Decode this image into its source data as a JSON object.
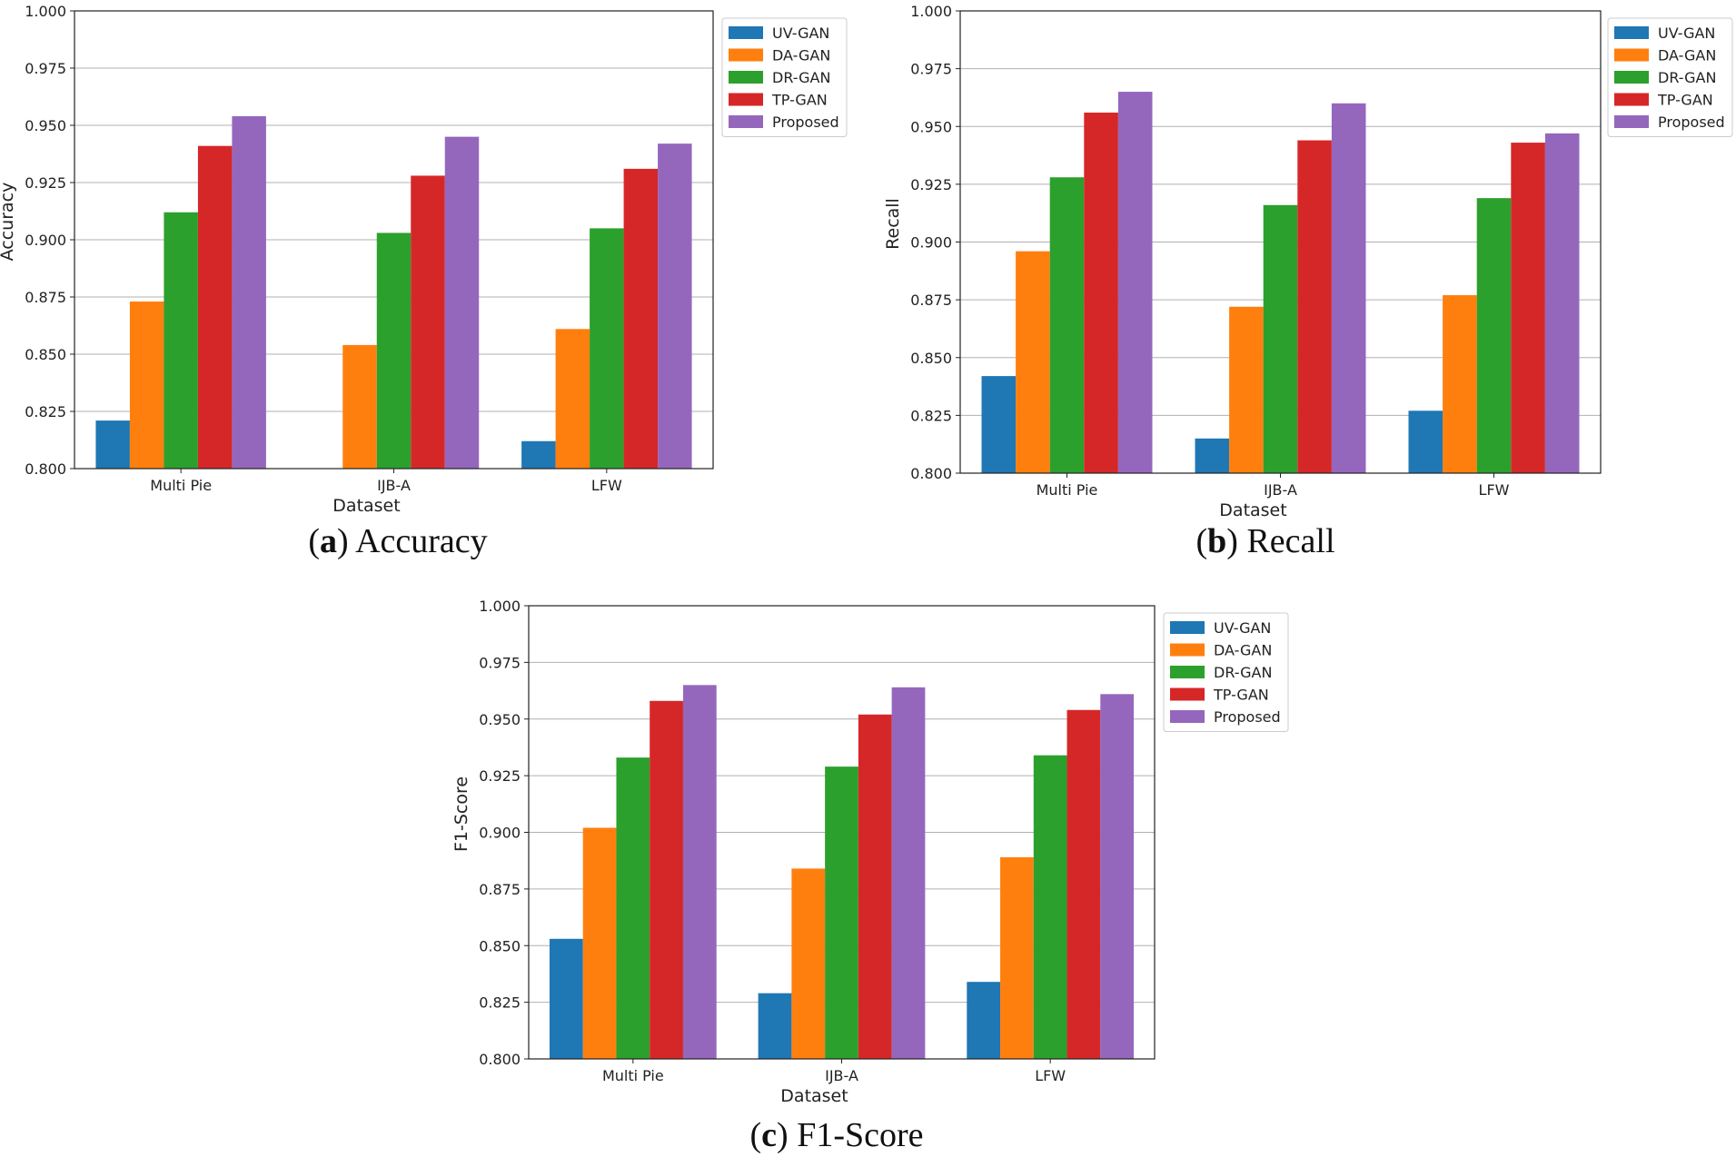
{
  "chart_data": [
    {
      "type": "bar",
      "title": "",
      "xlabel": "Dataset",
      "ylabel": "Accuracy",
      "ylim": [
        0.8,
        1.0
      ],
      "yticks": [
        "0.800",
        "0.825",
        "0.850",
        "0.875",
        "0.900",
        "0.925",
        "0.950",
        "0.975",
        "1.000"
      ],
      "grid": true,
      "legend": "top-right outside",
      "categories": [
        "Multi Pie",
        "IJB-A",
        "LFW"
      ],
      "series": [
        {
          "name": "UV-GAN",
          "values": [
            0.821,
            0.796,
            0.812
          ]
        },
        {
          "name": "DA-GAN",
          "values": [
            0.873,
            0.854,
            0.861
          ]
        },
        {
          "name": "DR-GAN",
          "values": [
            0.912,
            0.903,
            0.905
          ]
        },
        {
          "name": "TP-GAN",
          "values": [
            0.941,
            0.928,
            0.931
          ]
        },
        {
          "name": "Proposed",
          "values": [
            0.954,
            0.945,
            0.942
          ]
        }
      ],
      "caption_letter": "a",
      "caption_text": "Accuracy"
    },
    {
      "type": "bar",
      "title": "",
      "xlabel": "Dataset",
      "ylabel": "Recall",
      "ylim": [
        0.8,
        1.0
      ],
      "yticks": [
        "0.800",
        "0.825",
        "0.850",
        "0.875",
        "0.900",
        "0.925",
        "0.950",
        "0.975",
        "1.000"
      ],
      "grid": true,
      "legend": "top-right outside",
      "categories": [
        "Multi Pie",
        "IJB-A",
        "LFW"
      ],
      "series": [
        {
          "name": "UV-GAN",
          "values": [
            0.842,
            0.815,
            0.827
          ]
        },
        {
          "name": "DA-GAN",
          "values": [
            0.896,
            0.872,
            0.877
          ]
        },
        {
          "name": "DR-GAN",
          "values": [
            0.928,
            0.916,
            0.919
          ]
        },
        {
          "name": "TP-GAN",
          "values": [
            0.956,
            0.944,
            0.943
          ]
        },
        {
          "name": "Proposed",
          "values": [
            0.965,
            0.96,
            0.947
          ]
        }
      ],
      "caption_letter": "b",
      "caption_text": "Recall"
    },
    {
      "type": "bar",
      "title": "",
      "xlabel": "Dataset",
      "ylabel": "F1-Score",
      "ylim": [
        0.8,
        1.0
      ],
      "yticks": [
        "0.800",
        "0.825",
        "0.850",
        "0.875",
        "0.900",
        "0.925",
        "0.950",
        "0.975",
        "1.000"
      ],
      "grid": true,
      "legend": "top-right outside",
      "categories": [
        "Multi Pie",
        "IJB-A",
        "LFW"
      ],
      "series": [
        {
          "name": "UV-GAN",
          "values": [
            0.853,
            0.829,
            0.834
          ]
        },
        {
          "name": "DA-GAN",
          "values": [
            0.902,
            0.884,
            0.889
          ]
        },
        {
          "name": "DR-GAN",
          "values": [
            0.933,
            0.929,
            0.934
          ]
        },
        {
          "name": "TP-GAN",
          "values": [
            0.958,
            0.952,
            0.954
          ]
        },
        {
          "name": "Proposed",
          "values": [
            0.965,
            0.964,
            0.961
          ]
        }
      ],
      "caption_letter": "c",
      "caption_text": "F1-Score"
    }
  ],
  "colors": [
    "#1f77b4",
    "#ff7f0e",
    "#2ca02c",
    "#d62728",
    "#9467bd"
  ]
}
